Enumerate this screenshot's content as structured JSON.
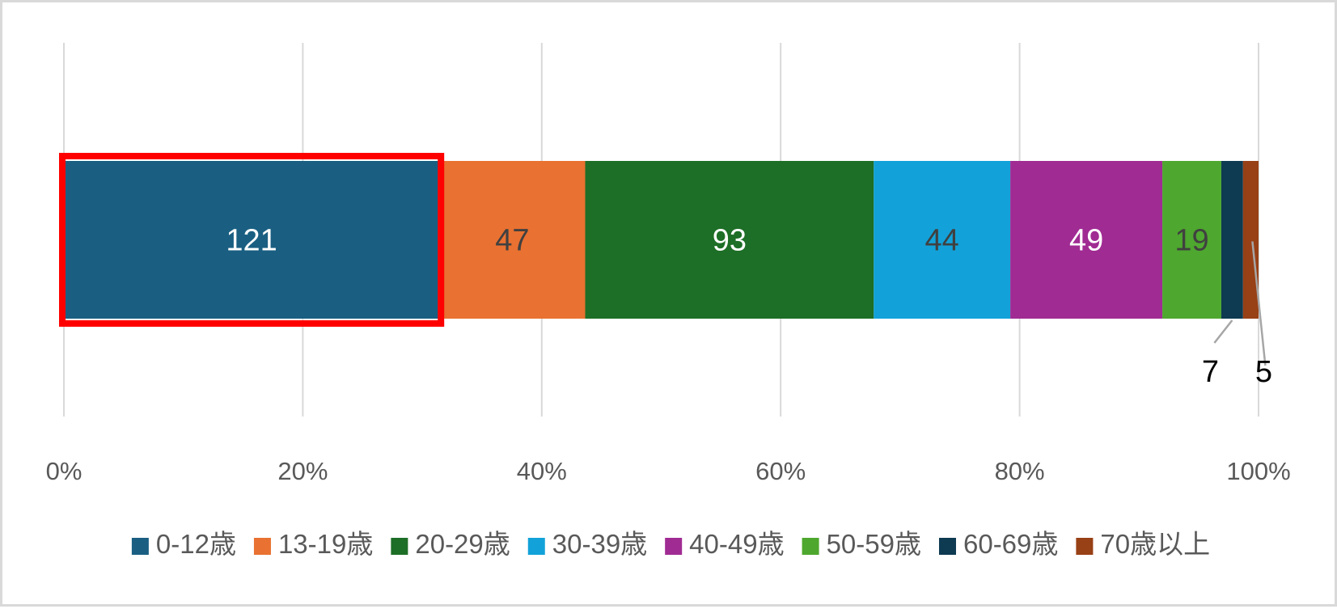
{
  "chart_data": {
    "type": "bar",
    "orientation": "horizontal",
    "stacked": "percent",
    "title": "",
    "xlabel": "",
    "ylabel": "",
    "xlim": [
      0,
      100
    ],
    "xticks": [
      "0%",
      "20%",
      "40%",
      "60%",
      "80%",
      "100%"
    ],
    "grid": "vertical",
    "legend_position": "bottom",
    "highlighted_segment": "0-12歳",
    "highlight_color": "#ff0000",
    "series": [
      {
        "name": "0-12歳",
        "value": 121,
        "color": "#1a5f82",
        "label_color": "#ffffff"
      },
      {
        "name": "13-19歳",
        "value": 47,
        "color": "#e97131",
        "label_color": "#404040"
      },
      {
        "name": "20-29歳",
        "value": 93,
        "color": "#1d6e26",
        "label_color": "#ffffff"
      },
      {
        "name": "30-39歳",
        "value": 44,
        "color": "#12a2d9",
        "label_color": "#404040"
      },
      {
        "name": "40-49歳",
        "value": 49,
        "color": "#a02b93",
        "label_color": "#ffffff"
      },
      {
        "name": "50-59歳",
        "value": 19,
        "color": "#4ea72e",
        "label_color": "#404040"
      },
      {
        "name": "60-69歳",
        "value": 7,
        "color": "#0e3a52",
        "label_color": "#000000",
        "callout": true
      },
      {
        "name": "70歳以上",
        "value": 5,
        "color": "#984016",
        "label_color": "#000000",
        "callout": true
      }
    ]
  }
}
